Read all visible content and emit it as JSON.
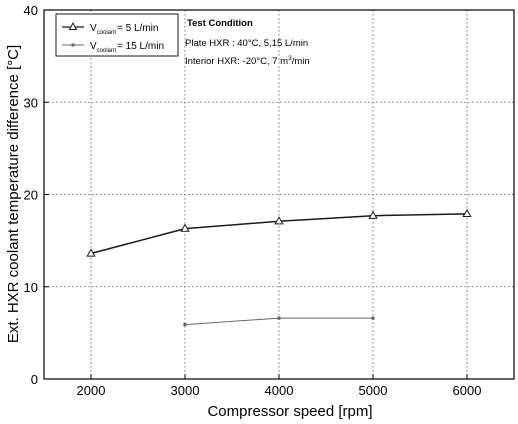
{
  "chart_data": {
    "type": "line",
    "xlabel": "Compressor speed [rpm]",
    "ylabel": "Ext. HXR coolant temperature difference [°C]",
    "xlim": [
      1500,
      6500
    ],
    "ylim": [
      0,
      40
    ],
    "x_ticks": [
      "2000",
      "3000",
      "4000",
      "5000",
      "6000"
    ],
    "y_ticks": [
      "0",
      "10",
      "20",
      "30",
      "40"
    ],
    "grid": "dotted",
    "legend_position": "top-left",
    "series": [
      {
        "name": "V coolant = 5 L/min",
        "legend_main": "V",
        "legend_sub": "coolant",
        "legend_rest": "= 5 L/min",
        "marker": "triangle",
        "color": "#1a1a1a",
        "x": [
          2000,
          3000,
          4000,
          5000,
          6000
        ],
        "y": [
          13.6,
          16.3,
          17.1,
          17.7,
          17.9
        ]
      },
      {
        "name": "V coolant = 15 L/min",
        "legend_main": "V",
        "legend_sub": "coolant",
        "legend_rest": "= 15 L/min",
        "marker": "dot",
        "color": "#666666",
        "x": [
          3000,
          4000,
          5000
        ],
        "y": [
          5.9,
          6.6,
          6.6
        ]
      }
    ],
    "annotation": {
      "title": "Test Condition",
      "line1": "Plate HXR : 40°C, 5,15 L/min",
      "line2_pre": "Interior HXR: -20°C, 7 m",
      "line2_sup": "3",
      "line2_post": "/min"
    }
  }
}
